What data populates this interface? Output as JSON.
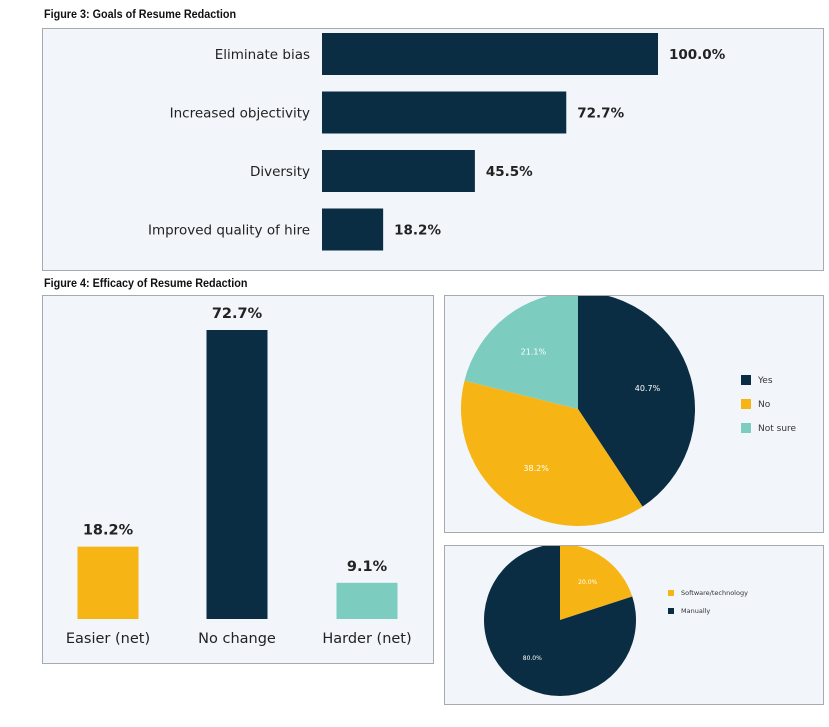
{
  "colors": {
    "navy": "#0b2d43",
    "yellow": "#f7b515",
    "teal": "#7ccdbf",
    "panel_bg": "#f2f5fa"
  },
  "fig3": {
    "title": "Figure 3: Goals of Resume Redaction",
    "chart_data": {
      "type": "bar",
      "orientation": "horizontal",
      "categories": [
        "Eliminate bias",
        "Increased objectivity",
        "Diversity",
        "Improved quality of hire"
      ],
      "values": [
        100.0,
        72.7,
        45.5,
        18.2
      ],
      "value_labels": [
        "100.0%",
        "72.7%",
        "45.5%",
        "18.2%"
      ],
      "xlim": [
        0,
        100
      ],
      "grid": false
    }
  },
  "fig4": {
    "title": "Figure 4: Efficacy of Resume Redaction",
    "chart_data": [
      {
        "type": "bar",
        "categories": [
          "Easier (net)",
          "No change",
          "Harder (net)"
        ],
        "values": [
          18.2,
          72.7,
          9.1
        ],
        "value_labels": [
          "18.2%",
          "72.7%",
          "9.1%"
        ],
        "colors": [
          "#f7b515",
          "#0b2d43",
          "#7ccdbf"
        ],
        "ylim": [
          0,
          72.7
        ],
        "grid": false
      },
      {
        "type": "pie",
        "labels": [
          "Yes",
          "No",
          "Not sure"
        ],
        "values": [
          40.7,
          38.2,
          21.1
        ],
        "value_labels": [
          "40.7%",
          "38.2%",
          "21.1%"
        ],
        "colors": [
          "#0b2d43",
          "#f7b515",
          "#7ccdbf"
        ],
        "legend": "right"
      },
      {
        "type": "pie",
        "labels": [
          "Software/technology",
          "Manually"
        ],
        "values": [
          20.0,
          80.0
        ],
        "value_labels": [
          "20.0%",
          "80.0%"
        ],
        "colors": [
          "#f7b515",
          "#0b2d43"
        ],
        "legend": "right"
      }
    ]
  }
}
